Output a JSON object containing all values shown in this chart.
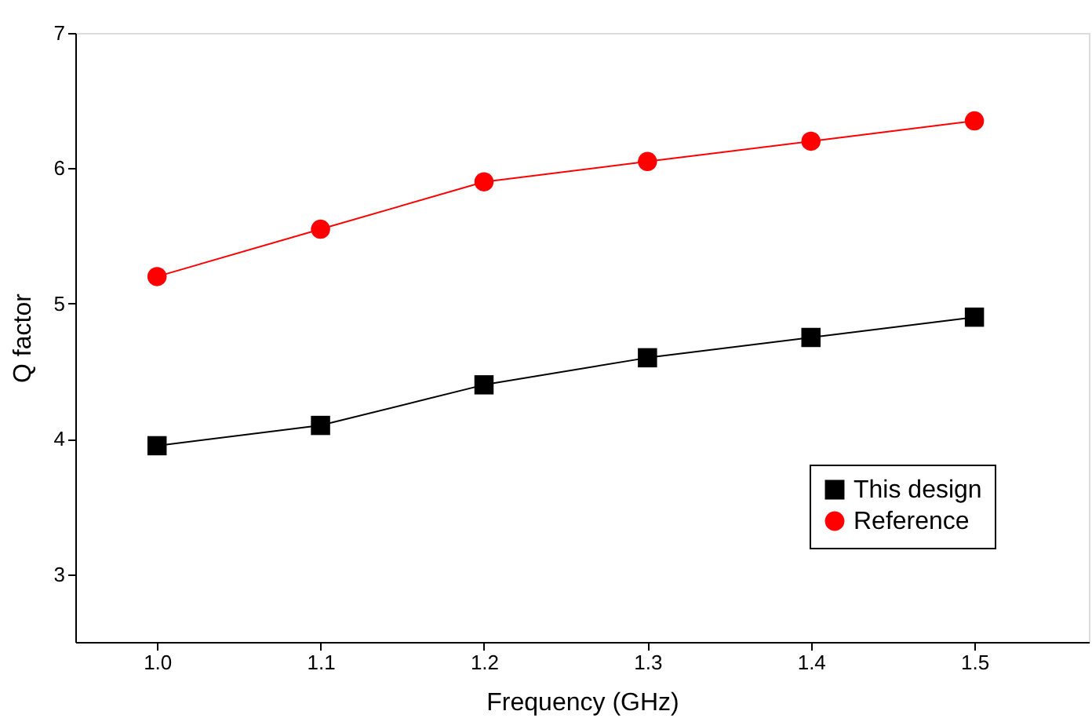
{
  "chart_data": {
    "type": "line",
    "xlabel": "Frequency (GHz)",
    "ylabel": "Q factor",
    "x": [
      1.0,
      1.1,
      1.2,
      1.3,
      1.4,
      1.5
    ],
    "series": [
      {
        "name": "This design",
        "color": "#000000",
        "marker": "square",
        "values": [
          3.95,
          4.1,
          4.4,
          4.6,
          4.75,
          4.9
        ]
      },
      {
        "name": "Reference",
        "color": "#ff0000",
        "marker": "circle",
        "values": [
          5.2,
          5.55,
          5.9,
          6.05,
          6.2,
          6.35
        ]
      }
    ],
    "xlim": [
      0.95,
      1.57
    ],
    "xticks": [
      {
        "value": 1.0,
        "label": "1.0"
      },
      {
        "value": 1.1,
        "label": "1.1"
      },
      {
        "value": 1.2,
        "label": "1.2"
      },
      {
        "value": 1.3,
        "label": "1.3"
      },
      {
        "value": 1.4,
        "label": "1.4"
      },
      {
        "value": 1.5,
        "label": "1.5"
      }
    ],
    "ylim": [
      2.5,
      7
    ],
    "yticks": [
      3,
      4,
      5,
      6,
      7
    ],
    "grid": false,
    "legend": "bottom right",
    "line_style": "solid"
  }
}
